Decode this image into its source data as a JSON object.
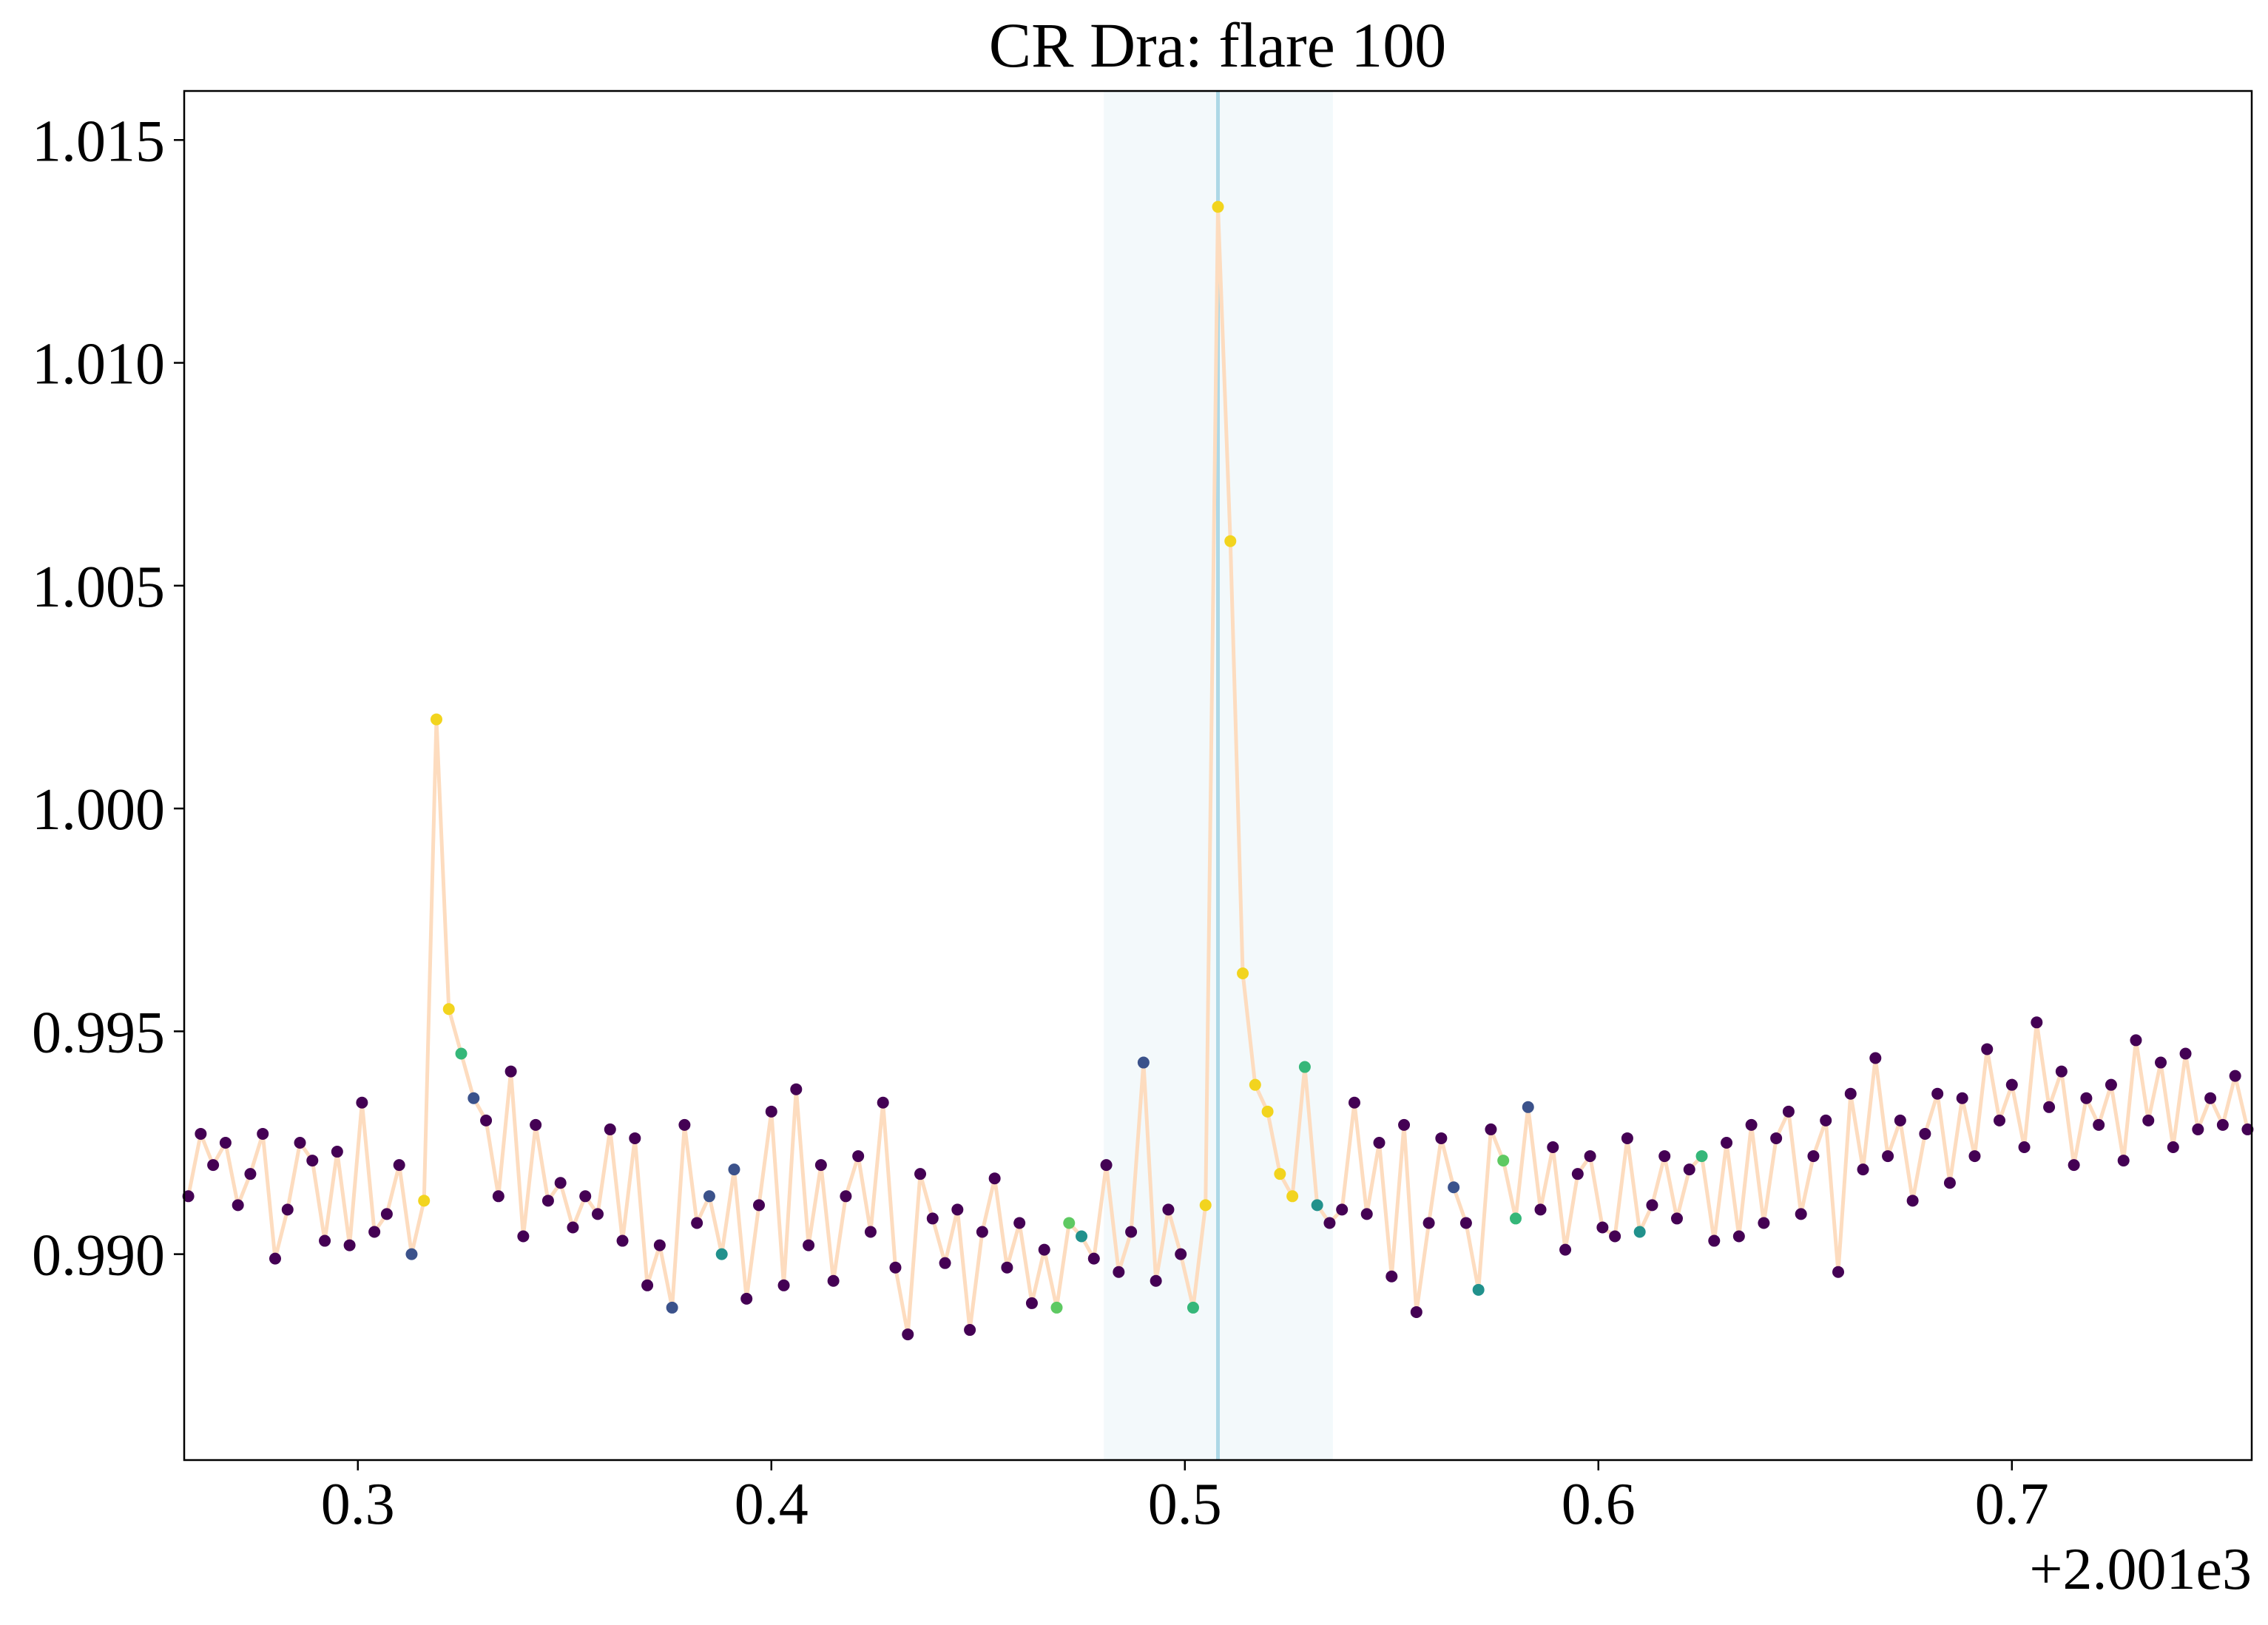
{
  "chart_data": {
    "type": "scatter",
    "title": "CR Dra: flare 100",
    "x_offset_label": "+2.001e3",
    "x": [
      0.259,
      0.262,
      0.265,
      0.268,
      0.271,
      0.274,
      0.277,
      0.28,
      0.283,
      0.286,
      0.289,
      0.292,
      0.295,
      0.298,
      0.301,
      0.304,
      0.307,
      0.31,
      0.313,
      0.316,
      0.319,
      0.322,
      0.325,
      0.328,
      0.331,
      0.334,
      0.337,
      0.34,
      0.343,
      0.346,
      0.349,
      0.352,
      0.355,
      0.358,
      0.361,
      0.364,
      0.367,
      0.37,
      0.373,
      0.376,
      0.379,
      0.382,
      0.385,
      0.388,
      0.391,
      0.394,
      0.397,
      0.4,
      0.403,
      0.406,
      0.409,
      0.412,
      0.415,
      0.418,
      0.421,
      0.424,
      0.427,
      0.43,
      0.433,
      0.436,
      0.439,
      0.442,
      0.445,
      0.448,
      0.451,
      0.454,
      0.457,
      0.46,
      0.463,
      0.466,
      0.469,
      0.472,
      0.475,
      0.478,
      0.481,
      0.484,
      0.487,
      0.49,
      0.493,
      0.496,
      0.499,
      0.502,
      0.505,
      0.508,
      0.511,
      0.514,
      0.517,
      0.52,
      0.523,
      0.526,
      0.529,
      0.532,
      0.535,
      0.538,
      0.541,
      0.544,
      0.547,
      0.55,
      0.553,
      0.556,
      0.559,
      0.562,
      0.565,
      0.568,
      0.571,
      0.574,
      0.577,
      0.58,
      0.583,
      0.586,
      0.589,
      0.592,
      0.595,
      0.598,
      0.601,
      0.604,
      0.607,
      0.61,
      0.613,
      0.616,
      0.619,
      0.622,
      0.625,
      0.628,
      0.631,
      0.634,
      0.637,
      0.64,
      0.643,
      0.646,
      0.649,
      0.652,
      0.655,
      0.658,
      0.661,
      0.664,
      0.667,
      0.67,
      0.673,
      0.676,
      0.679,
      0.682,
      0.685,
      0.688,
      0.691,
      0.694,
      0.697,
      0.7,
      0.703,
      0.706,
      0.709,
      0.712,
      0.715,
      0.718,
      0.721,
      0.724,
      0.727,
      0.73,
      0.733,
      0.736,
      0.739,
      0.742,
      0.745,
      0.748,
      0.751,
      0.754,
      0.757
    ],
    "values": [
      0.9913,
      0.9927,
      0.992,
      0.9925,
      0.9911,
      0.9918,
      0.9927,
      0.9899,
      0.991,
      0.9925,
      0.9921,
      0.9903,
      0.9923,
      0.9902,
      0.9934,
      0.9905,
      0.9909,
      0.992,
      0.99,
      0.9912,
      1.002,
      0.9955,
      0.9945,
      0.9935,
      0.993,
      0.9913,
      0.9941,
      0.9904,
      0.9929,
      0.9912,
      0.9916,
      0.9906,
      0.9913,
      0.9909,
      0.9928,
      0.9903,
      0.9926,
      0.9893,
      0.9902,
      0.9888,
      0.9929,
      0.9907,
      0.9913,
      0.99,
      0.9919,
      0.989,
      0.9911,
      0.9932,
      0.9893,
      0.9937,
      0.9902,
      0.992,
      0.9894,
      0.9913,
      0.9922,
      0.9905,
      0.9934,
      0.9897,
      0.9882,
      0.9918,
      0.9908,
      0.9898,
      0.991,
      0.9883,
      0.9905,
      0.9917,
      0.9897,
      0.9907,
      0.9889,
      0.9901,
      0.9888,
      0.9907,
      0.9904,
      0.9899,
      0.992,
      0.9896,
      0.9905,
      0.9943,
      0.9894,
      0.991,
      0.99,
      0.9888,
      0.9911,
      1.0135,
      1.006,
      0.9963,
      0.9938,
      0.9932,
      0.9918,
      0.9913,
      0.9942,
      0.9911,
      0.9907,
      0.991,
      0.9934,
      0.9909,
      0.9925,
      0.9895,
      0.9929,
      0.9887,
      0.9907,
      0.9926,
      0.9915,
      0.9907,
      0.9892,
      0.9928,
      0.9921,
      0.9908,
      0.9933,
      0.991,
      0.9924,
      0.9901,
      0.9918,
      0.9922,
      0.9906,
      0.9904,
      0.9926,
      0.9905,
      0.9911,
      0.9922,
      0.9908,
      0.9919,
      0.9922,
      0.9903,
      0.9925,
      0.9904,
      0.9929,
      0.9907,
      0.9926,
      0.9932,
      0.9909,
      0.9922,
      0.993,
      0.9896,
      0.9936,
      0.9919,
      0.9944,
      0.9922,
      0.993,
      0.9912,
      0.9927,
      0.9936,
      0.9916,
      0.9935,
      0.9922,
      0.9946,
      0.993,
      0.9938,
      0.9924,
      0.9952,
      0.9933,
      0.9941,
      0.992,
      0.9935,
      0.9929,
      0.9938,
      0.9921,
      0.9948,
      0.993,
      0.9943,
      0.9924,
      0.9945,
      0.9928,
      0.9935,
      0.9929,
      0.994,
      0.9928
    ],
    "colors": [
      "#440154",
      "#440154",
      "#440154",
      "#440154",
      "#440154",
      "#440154",
      "#440154",
      "#440154",
      "#440154",
      "#440154",
      "#440154",
      "#440154",
      "#440154",
      "#440154",
      "#440154",
      "#440154",
      "#440154",
      "#440154",
      "#3b528b",
      "#f2d41e",
      "#f2d41e",
      "#f2d41e",
      "#35b779",
      "#3b528b",
      "#440154",
      "#440154",
      "#440154",
      "#440154",
      "#440154",
      "#440154",
      "#440154",
      "#440154",
      "#440154",
      "#440154",
      "#440154",
      "#440154",
      "#440154",
      "#440154",
      "#440154",
      "#3b528b",
      "#440154",
      "#440154",
      "#3b528b",
      "#21918c",
      "#3b528b",
      "#440154",
      "#440154",
      "#440154",
      "#440154",
      "#440154",
      "#440154",
      "#440154",
      "#440154",
      "#440154",
      "#440154",
      "#440154",
      "#440154",
      "#440154",
      "#440154",
      "#440154",
      "#440154",
      "#440154",
      "#440154",
      "#440154",
      "#440154",
      "#440154",
      "#440154",
      "#440154",
      "#440154",
      "#440154",
      "#5ec962",
      "#5ec962",
      "#21918c",
      "#440154",
      "#440154",
      "#440154",
      "#440154",
      "#3b528b",
      "#440154",
      "#440154",
      "#440154",
      "#35b779",
      "#f2d41e",
      "#f2d41e",
      "#f2d41e",
      "#f2d41e",
      "#f2d41e",
      "#f2d41e",
      "#f2d41e",
      "#f2d41e",
      "#35b779",
      "#21918c",
      "#440154",
      "#440154",
      "#440154",
      "#440154",
      "#440154",
      "#440154",
      "#440154",
      "#440154",
      "#440154",
      "#440154",
      "#3b528b",
      "#440154",
      "#21918c",
      "#440154",
      "#5ec962",
      "#35b779",
      "#3b528b",
      "#440154",
      "#440154",
      "#440154",
      "#440154",
      "#440154",
      "#440154",
      "#440154",
      "#440154",
      "#21918c",
      "#440154",
      "#440154",
      "#440154",
      "#440154",
      "#35b779",
      "#440154",
      "#440154",
      "#440154",
      "#440154",
      "#440154",
      "#440154",
      "#440154",
      "#440154",
      "#440154",
      "#440154",
      "#440154",
      "#440154",
      "#440154",
      "#440154",
      "#440154",
      "#440154",
      "#440154",
      "#440154",
      "#440154",
      "#440154",
      "#440154",
      "#440154",
      "#440154",
      "#440154",
      "#440154",
      "#440154",
      "#440154",
      "#440154",
      "#440154",
      "#440154",
      "#440154",
      "#440154",
      "#440154",
      "#440154",
      "#440154",
      "#440154",
      "#440154",
      "#440154",
      "#440154",
      "#440154",
      "#440154",
      "#440154",
      "#440154",
      "#440154"
    ],
    "line_color": "#fddcbf",
    "span": [
      0.4804,
      0.5358
    ],
    "span_color": "#add8e6",
    "vline": 0.508,
    "vline_color": "#add8e6",
    "xlim": [
      0.258,
      0.758
    ],
    "ylim": [
      0.98538,
      1.0161
    ],
    "xticks": [
      0.3,
      0.4,
      0.5,
      0.6,
      0.7
    ],
    "yticks": [
      {
        "value": 0.99,
        "label": "0.990"
      },
      {
        "value": 0.995,
        "label": "0.995"
      },
      {
        "value": 1,
        "label": "1.000"
      },
      {
        "value": 1.005,
        "label": "1.005"
      },
      {
        "value": 1.01,
        "label": "1.010"
      },
      {
        "value": 1.015,
        "label": "1.015"
      }
    ]
  }
}
